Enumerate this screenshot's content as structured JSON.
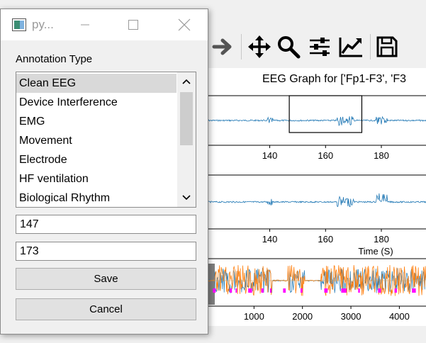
{
  "dialog": {
    "title": "py...",
    "annotation_label": "Annotation Type",
    "annotation_types": [
      "Clean EEG",
      "Device Interference",
      "EMG",
      "Movement",
      "Electrode",
      "HF ventilation",
      "Biological Rhythm"
    ],
    "selected_type": "Clean EEG",
    "start_value": "147",
    "end_value": "173",
    "save_label": "Save",
    "cancel_label": "Cancel"
  },
  "toolbar": {
    "buttons": [
      "forward-icon",
      "pan-icon",
      "zoom-icon",
      "subplots-icon",
      "customize-icon",
      "save-icon"
    ]
  },
  "chart_data": [
    {
      "type": "line",
      "title": "EEG Graph for ['Fp1-F3', 'F3",
      "xlabel": "",
      "x_ticks": [
        140,
        160,
        180
      ],
      "xlim": [
        117,
        196
      ],
      "series_color": "#1f77b4",
      "selection_box": [
        147,
        173
      ],
      "grid": false
    },
    {
      "type": "line",
      "xlabel": "Time (S)",
      "x_ticks": [
        140,
        160,
        180
      ],
      "xlim": [
        117,
        196
      ],
      "series_color": "#1f77b4",
      "grid": false
    },
    {
      "type": "line",
      "xlabel": "",
      "x_ticks": [
        1000,
        2000,
        3000,
        4000
      ],
      "xlim": [
        0,
        4550
      ],
      "series_colors": [
        "#1f77b4",
        "#ff7f0e"
      ],
      "annotation_color": "#ff00ff",
      "grid": false
    }
  ]
}
